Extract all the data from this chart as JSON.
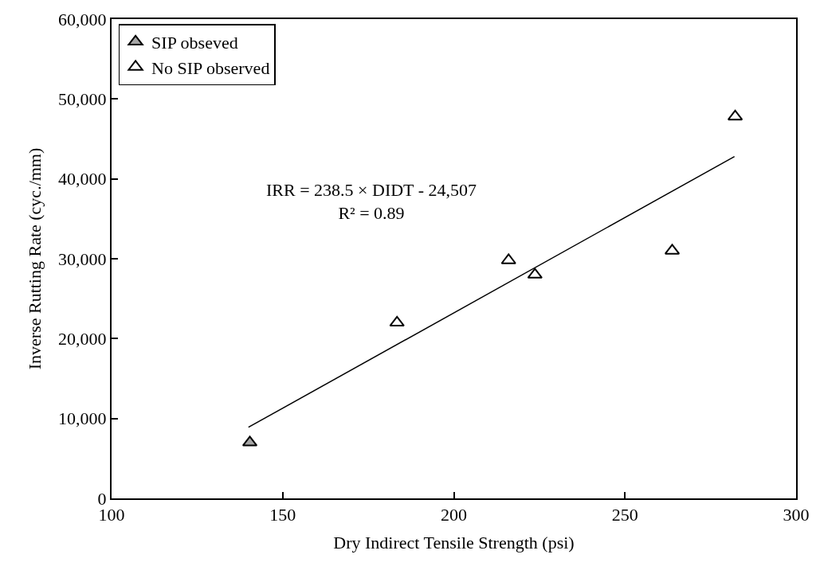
{
  "chart_data": {
    "type": "scatter",
    "xlabel": "Dry Indirect Tensile Strength (psi)",
    "ylabel": "Inverse Rutting Rate (cyc./mm)",
    "xlim": [
      100,
      300
    ],
    "xticks": [
      100,
      150,
      200,
      250,
      300
    ],
    "ylim": [
      0,
      60000
    ],
    "yticks": [
      {
        "value": 0,
        "label": "0"
      },
      {
        "value": 10000,
        "label": "10,000"
      },
      {
        "value": 20000,
        "label": "20,000"
      },
      {
        "value": 30000,
        "label": "30,000"
      },
      {
        "value": 40000,
        "label": "40,000"
      },
      {
        "value": 50000,
        "label": "50,000"
      },
      {
        "value": 60000,
        "label": "60,000"
      }
    ],
    "grid": false,
    "legend": "top left",
    "marker": "triangle",
    "series": [
      {
        "name": "SIP obseved",
        "color": "#a6a6a6",
        "x": [
          140.4
        ],
        "values": [
          7000
        ]
      },
      {
        "name": "No SIP observed",
        "color": "#ffffff",
        "x": [
          183.4,
          216.0,
          223.7,
          263.8,
          282.2
        ],
        "values": [
          22000,
          29800,
          28000,
          31000,
          47800
        ]
      },
      {
        "type": "line",
        "color": "#000000",
        "marker": "none",
        "line_style": "solid",
        "x": [
          140,
          282
        ],
        "values": [
          8900,
          42800
        ]
      }
    ],
    "annotations": [
      "IRR = 238.5 × DIDT - 24,507\nR² = 0.89"
    ]
  }
}
